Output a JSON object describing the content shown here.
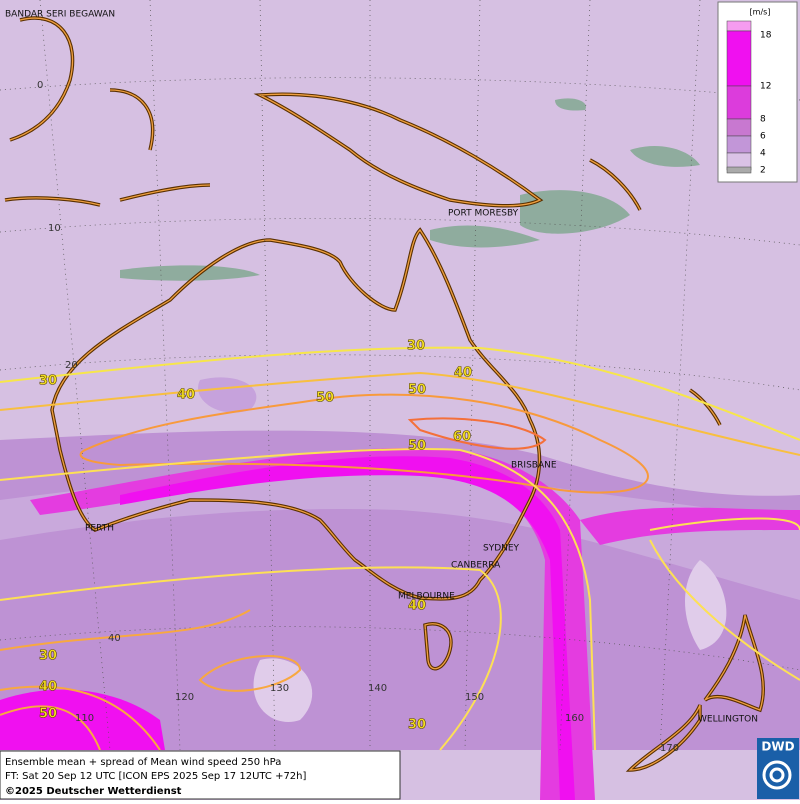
{
  "map": {
    "cities": [
      "BANDAR SERI BEGAWAN",
      "PORT MORESBY",
      "BRISBANE",
      "PERTH",
      "SYDNEY",
      "CANBERRA",
      "MELBOURNE",
      "WELLINGTON"
    ],
    "grid_labels": [
      0,
      10,
      20,
      40,
      110,
      120,
      130,
      140,
      150,
      160,
      170
    ],
    "contour_labels": [
      30,
      40,
      30,
      40,
      50,
      50,
      60,
      50,
      40,
      30,
      40,
      50,
      30
    ]
  },
  "legend": {
    "unit": "[m/s]",
    "ticks": [
      18,
      12,
      8,
      6,
      4,
      2
    ]
  },
  "footer": {
    "line1": "Ensemble mean + spread of Mean wind speed 250 hPa",
    "line2": "FT: Sat 20 Sep 12 UTC [ICON EPS 2025 Sep 17 12UTC +72h]",
    "line3": "©2025 Deutscher Wetterdienst"
  },
  "logo": "DWD"
}
